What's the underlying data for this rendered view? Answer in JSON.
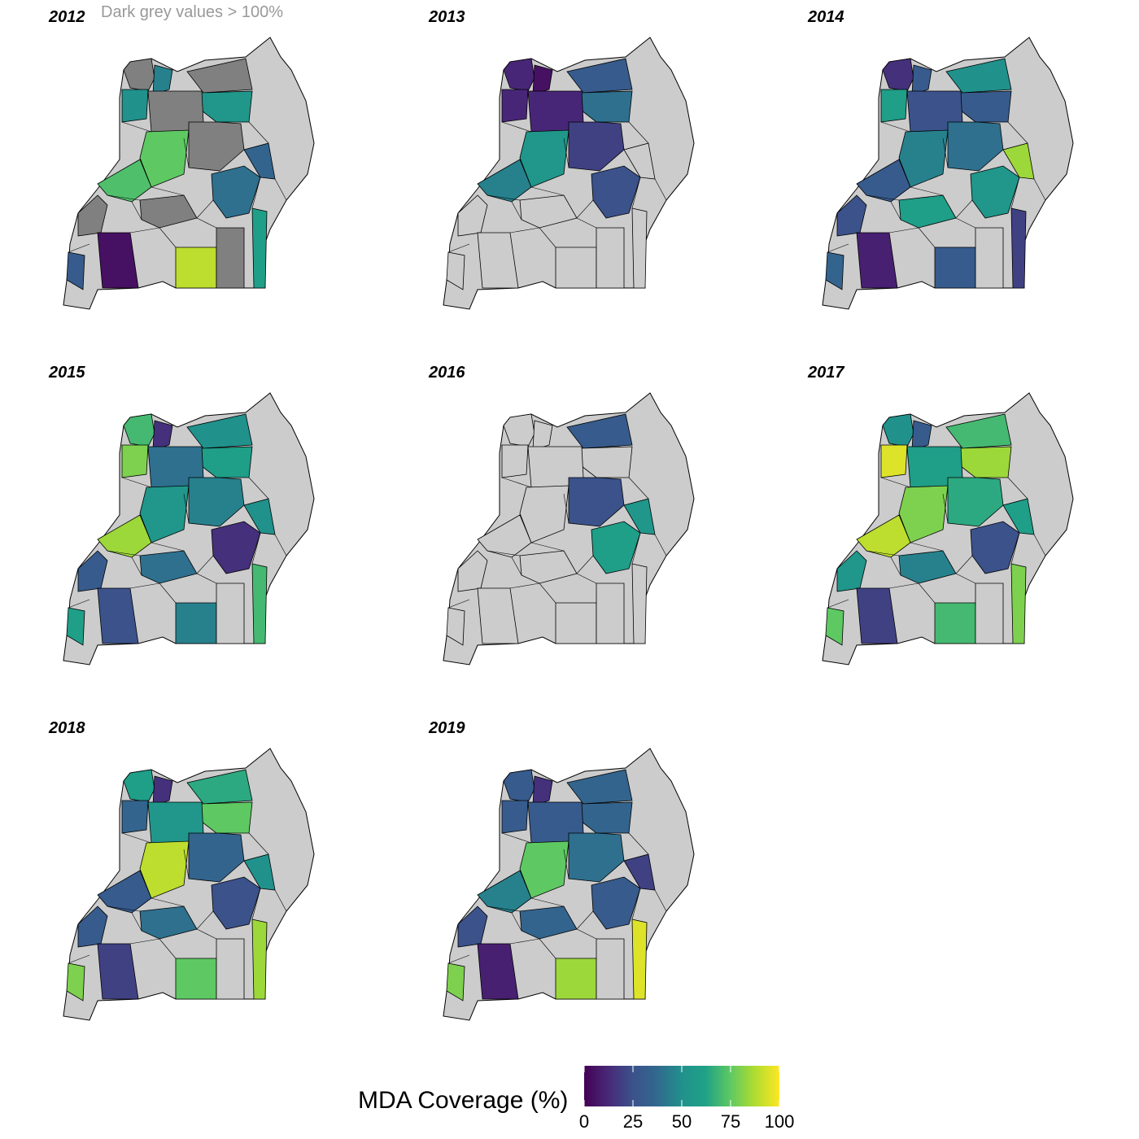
{
  "note": "Dark grey values > 100%",
  "legend": {
    "title": "MDA Coverage (%)",
    "ticks": [
      "0",
      "25",
      "50",
      "75",
      "100"
    ],
    "range": [
      0,
      100
    ],
    "colormap": "viridis",
    "colors": [
      "#440154",
      "#3b528b",
      "#21918c",
      "#5ec962",
      "#fde725"
    ],
    "over_100_color": "#808080",
    "no_data_color": "#cccccc"
  },
  "panels": [
    {
      "year": "2012",
      "districts": [
        [
          0,
          "over"
        ],
        [
          1,
          45
        ],
        [
          2,
          50
        ],
        [
          3,
          "over"
        ],
        [
          4,
          55
        ],
        [
          5,
          "over"
        ],
        [
          6,
          75
        ],
        [
          7,
          "over"
        ],
        [
          8,
          72
        ],
        [
          9,
          40
        ],
        [
          10,
          35
        ],
        [
          11,
          "over"
        ],
        [
          12,
          60
        ],
        [
          13,
          "over"
        ],
        [
          14,
          5
        ],
        [
          15,
          90
        ],
        [
          16,
          "over"
        ],
        [
          17,
          30
        ]
      ]
    },
    {
      "year": "2013",
      "districts": [
        [
          0,
          12
        ],
        [
          1,
          5
        ],
        [
          2,
          12
        ],
        [
          3,
          30
        ],
        [
          4,
          40
        ],
        [
          5,
          12
        ],
        [
          6,
          55
        ],
        [
          7,
          20
        ],
        [
          8,
          45
        ],
        [
          9,
          25
        ],
        [
          10,
          "na"
        ],
        [
          11,
          "na"
        ],
        [
          12,
          "na"
        ],
        [
          13,
          "na"
        ],
        [
          14,
          "na"
        ],
        [
          15,
          "na"
        ],
        [
          16,
          "na"
        ],
        [
          17,
          "na"
        ]
      ]
    },
    {
      "year": "2014",
      "districts": [
        [
          0,
          15
        ],
        [
          1,
          30
        ],
        [
          2,
          60
        ],
        [
          3,
          50
        ],
        [
          4,
          30
        ],
        [
          5,
          25
        ],
        [
          6,
          45
        ],
        [
          7,
          40
        ],
        [
          8,
          30
        ],
        [
          9,
          55
        ],
        [
          10,
          85
        ],
        [
          11,
          60
        ],
        [
          12,
          20
        ],
        [
          13,
          25
        ],
        [
          14,
          10
        ],
        [
          15,
          30
        ],
        [
          16,
          "na"
        ],
        [
          17,
          35
        ]
      ]
    },
    {
      "year": "2015",
      "districts": [
        [
          0,
          70
        ],
        [
          1,
          15
        ],
        [
          2,
          80
        ],
        [
          3,
          50
        ],
        [
          4,
          60
        ],
        [
          5,
          40
        ],
        [
          6,
          55
        ],
        [
          7,
          45
        ],
        [
          8,
          85
        ],
        [
          9,
          15
        ],
        [
          10,
          50
        ],
        [
          11,
          40
        ],
        [
          12,
          70
        ],
        [
          13,
          30
        ],
        [
          14,
          25
        ],
        [
          15,
          45
        ],
        [
          16,
          "na"
        ],
        [
          17,
          60
        ]
      ]
    },
    {
      "year": "2016",
      "districts": [
        [
          0,
          "na"
        ],
        [
          1,
          "na"
        ],
        [
          2,
          "na"
        ],
        [
          3,
          30
        ],
        [
          4,
          "na"
        ],
        [
          5,
          "na"
        ],
        [
          6,
          "na"
        ],
        [
          7,
          25
        ],
        [
          8,
          "na"
        ],
        [
          9,
          60
        ],
        [
          10,
          55
        ],
        [
          11,
          "na"
        ],
        [
          12,
          "na"
        ],
        [
          13,
          "na"
        ],
        [
          14,
          "na"
        ],
        [
          15,
          "na"
        ],
        [
          16,
          "na"
        ],
        [
          17,
          "na"
        ]
      ]
    },
    {
      "year": "2017",
      "districts": [
        [
          0,
          50
        ],
        [
          1,
          30
        ],
        [
          2,
          95
        ],
        [
          3,
          70
        ],
        [
          4,
          85
        ],
        [
          5,
          60
        ],
        [
          6,
          80
        ],
        [
          7,
          65
        ],
        [
          8,
          90
        ],
        [
          9,
          25
        ],
        [
          10,
          60
        ],
        [
          11,
          45
        ],
        [
          12,
          80
        ],
        [
          13,
          55
        ],
        [
          14,
          20
        ],
        [
          15,
          70
        ],
        [
          16,
          "na"
        ],
        [
          17,
          75
        ]
      ]
    },
    {
      "year": "2018",
      "districts": [
        [
          0,
          60
        ],
        [
          1,
          15
        ],
        [
          2,
          35
        ],
        [
          3,
          65
        ],
        [
          4,
          75
        ],
        [
          5,
          55
        ],
        [
          6,
          90
        ],
        [
          7,
          35
        ],
        [
          8,
          30
        ],
        [
          9,
          25
        ],
        [
          10,
          50
        ],
        [
          11,
          40
        ],
        [
          12,
          85
        ],
        [
          13,
          30
        ],
        [
          14,
          20
        ],
        [
          15,
          75
        ],
        [
          16,
          "na"
        ],
        [
          17,
          80
        ]
      ]
    },
    {
      "year": "2019",
      "districts": [
        [
          0,
          30
        ],
        [
          1,
          15
        ],
        [
          2,
          30
        ],
        [
          3,
          35
        ],
        [
          4,
          35
        ],
        [
          5,
          30
        ],
        [
          6,
          75
        ],
        [
          7,
          40
        ],
        [
          8,
          45
        ],
        [
          9,
          30
        ],
        [
          10,
          20
        ],
        [
          11,
          35
        ],
        [
          12,
          95
        ],
        [
          13,
          25
        ],
        [
          14,
          10
        ],
        [
          15,
          85
        ],
        [
          16,
          "na"
        ],
        [
          17,
          80
        ]
      ]
    }
  ]
}
